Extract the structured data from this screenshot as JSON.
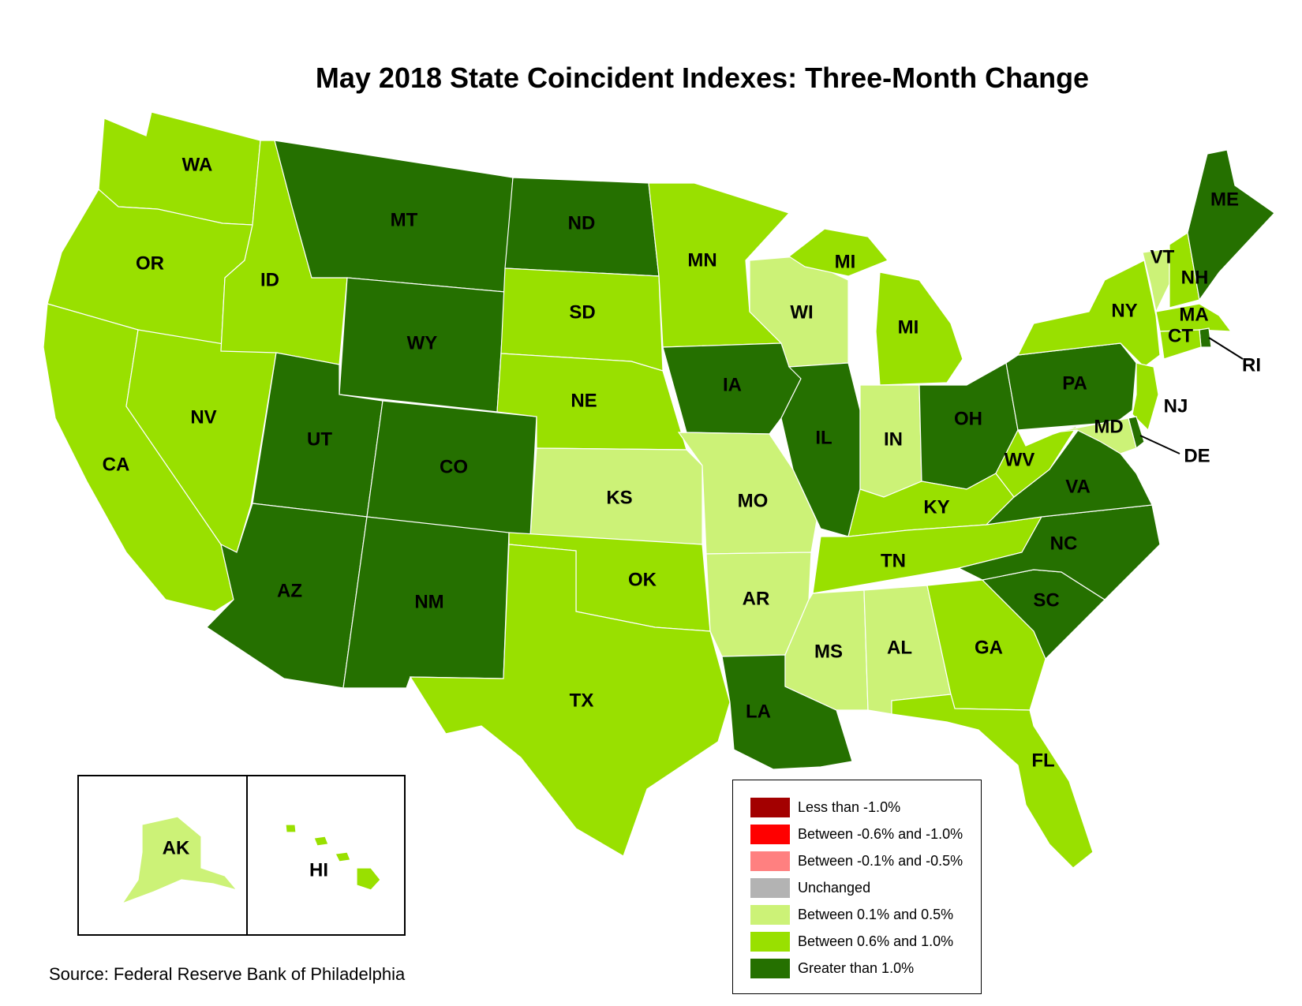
{
  "title": "May 2018 State Coincident Indexes: Three-Month Change",
  "source": "Source: Federal Reserve Bank of Philadelphia",
  "colors": {
    "lt_neg1": "#a30000",
    "neg06_neg1": "#ff0000",
    "neg01_neg05": "#ff8080",
    "unchanged": "#b3b3b3",
    "p01_p05": "#ccf277",
    "p06_p10": "#99e000",
    "gt_p10": "#257000"
  },
  "legend": [
    {
      "key": "lt_neg1",
      "label": "Less than -1.0%"
    },
    {
      "key": "neg06_neg1",
      "label": "Between -0.6% and -1.0%"
    },
    {
      "key": "neg01_neg05",
      "label": "Between -0.1% and -0.5%"
    },
    {
      "key": "unchanged",
      "label": "Unchanged"
    },
    {
      "key": "p01_p05",
      "label": "Between 0.1% and 0.5%"
    },
    {
      "key": "p06_p10",
      "label": "Between 0.6% and 1.0%"
    },
    {
      "key": "gt_p10",
      "label": "Greater than 1.0%"
    }
  ],
  "states": {
    "WA": "p06_p10",
    "OR": "p06_p10",
    "CA": "p06_p10",
    "NV": "p06_p10",
    "ID": "p06_p10",
    "MT": "gt_p10",
    "WY": "gt_p10",
    "UT": "gt_p10",
    "CO": "gt_p10",
    "AZ": "gt_p10",
    "NM": "gt_p10",
    "ND": "gt_p10",
    "SD": "p06_p10",
    "NE": "p06_p10",
    "KS": "p01_p05",
    "OK": "p06_p10",
    "TX": "p06_p10",
    "MN": "p06_p10",
    "IA": "gt_p10",
    "MO": "p01_p05",
    "AR": "p01_p05",
    "LA": "gt_p10",
    "WI": "p01_p05",
    "IL": "gt_p10",
    "MI": "p06_p10",
    "IN": "p01_p05",
    "OH": "gt_p10",
    "KY": "p06_p10",
    "TN": "p06_p10",
    "MS": "p01_p05",
    "AL": "p01_p05",
    "GA": "p06_p10",
    "FL": "p06_p10",
    "SC": "gt_p10",
    "NC": "gt_p10",
    "VA": "gt_p10",
    "WV": "p06_p10",
    "PA": "gt_p10",
    "NY": "p06_p10",
    "VT": "p01_p05",
    "NH": "p06_p10",
    "ME": "gt_p10",
    "MA": "p06_p10",
    "RI": "gt_p10",
    "CT": "p06_p10",
    "NJ": "p06_p10",
    "DE": "gt_p10",
    "MD": "p01_p05",
    "AK": "p01_p05",
    "HI": "p06_p10"
  },
  "labels": [
    "WA",
    "OR",
    "CA",
    "NV",
    "ID",
    "MT",
    "WY",
    "UT",
    "CO",
    "AZ",
    "NM",
    "ND",
    "SD",
    "NE",
    "KS",
    "OK",
    "TX",
    "MN",
    "IA",
    "MO",
    "AR",
    "LA",
    "WI",
    "IL",
    "MI",
    "MI",
    "IN",
    "OH",
    "KY",
    "TN",
    "MS",
    "AL",
    "GA",
    "FL",
    "SC",
    "NC",
    "VA",
    "WV",
    "PA",
    "NY",
    "VT",
    "NH",
    "ME",
    "MA",
    "RI",
    "CT",
    "NJ",
    "DE",
    "MD",
    "AK",
    "HI"
  ]
}
